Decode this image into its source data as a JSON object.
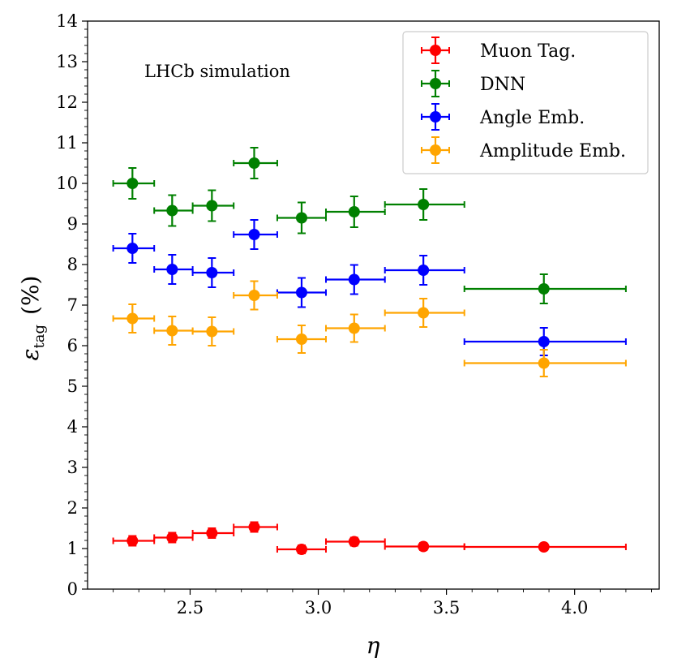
{
  "chart_data": {
    "type": "scatter",
    "title": "",
    "xlabel": "η",
    "ylabel": {
      "main": "ε",
      "sub": "tag",
      "unit": "(%)"
    },
    "xlim": [
      2.1,
      4.33
    ],
    "ylim": [
      0,
      14
    ],
    "xticks": [
      "2.5",
      "3.0",
      "3.5",
      "4.0"
    ],
    "xtick_values": [
      2.5,
      3.0,
      3.5,
      4.0
    ],
    "yticks": [
      "0",
      "1",
      "2",
      "3",
      "4",
      "5",
      "6",
      "7",
      "8",
      "9",
      "10",
      "11",
      "12",
      "13",
      "14"
    ],
    "ytick_values": [
      0,
      1,
      2,
      3,
      4,
      5,
      6,
      7,
      8,
      9,
      10,
      11,
      12,
      13,
      14
    ],
    "annotation": "LHCb simulation",
    "legend_position": "top-right",
    "bins": [
      {
        "x": 2.275,
        "lo": 2.2,
        "hi": 2.36
      },
      {
        "x": 2.43,
        "lo": 2.36,
        "hi": 2.51
      },
      {
        "x": 2.585,
        "lo": 2.51,
        "hi": 2.67
      },
      {
        "x": 2.75,
        "lo": 2.67,
        "hi": 2.84
      },
      {
        "x": 2.935,
        "lo": 2.84,
        "hi": 3.03
      },
      {
        "x": 3.14,
        "lo": 3.03,
        "hi": 3.26
      },
      {
        "x": 3.41,
        "lo": 3.26,
        "hi": 3.57
      },
      {
        "x": 3.88,
        "lo": 3.57,
        "hi": 4.2
      }
    ],
    "series": [
      {
        "name": "Muon Tag.",
        "color": "#ff0000",
        "values": [
          1.19,
          1.27,
          1.38,
          1.53,
          0.98,
          1.17,
          1.05,
          1.04
        ],
        "errors": [
          0.12,
          0.12,
          0.12,
          0.12,
          0.1,
          0.1,
          0.09,
          0.08
        ]
      },
      {
        "name": "DNN",
        "color": "#008000",
        "values": [
          10.0,
          9.33,
          9.45,
          10.5,
          9.15,
          9.3,
          9.48,
          7.4
        ],
        "errors": [
          0.38,
          0.38,
          0.38,
          0.38,
          0.38,
          0.38,
          0.38,
          0.36
        ]
      },
      {
        "name": "Angle Emb.",
        "color": "#0000ff",
        "values": [
          8.4,
          7.88,
          7.8,
          8.74,
          7.31,
          7.63,
          7.86,
          6.1
        ],
        "errors": [
          0.36,
          0.36,
          0.36,
          0.36,
          0.36,
          0.36,
          0.36,
          0.34
        ]
      },
      {
        "name": "Amplitude Emb.",
        "color": "#ffa500",
        "values": [
          6.67,
          6.37,
          6.35,
          7.24,
          6.16,
          6.43,
          6.81,
          5.57
        ],
        "errors": [
          0.35,
          0.35,
          0.35,
          0.35,
          0.34,
          0.34,
          0.35,
          0.33
        ]
      }
    ]
  }
}
